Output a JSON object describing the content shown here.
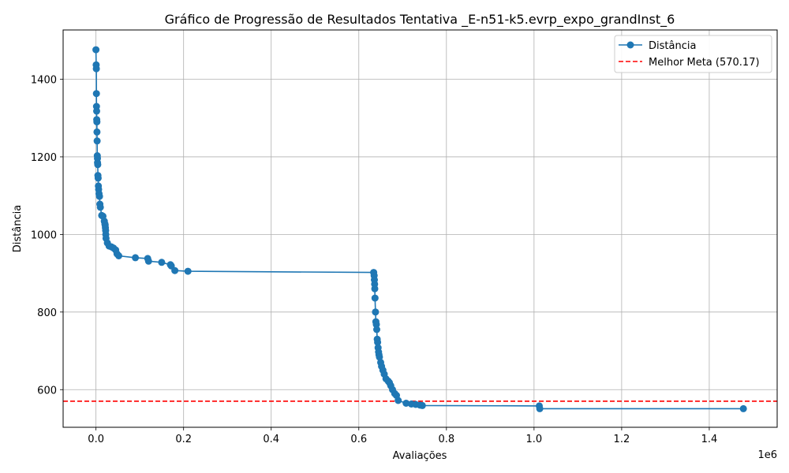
{
  "chart_data": {
    "type": "line",
    "title": "Gráfico de Progressão de Resultados Tentativa _E-n51-k5.evrp_expo_grandInst_6",
    "xlabel": "Avaliações",
    "ylabel": "Distância",
    "x_offset_label": "1e6",
    "x_scale_note": "x values in evaluations",
    "xlim": [
      -75000,
      1555000
    ],
    "ylim": [
      503,
      1527
    ],
    "xticks": [
      0,
      200000,
      400000,
      600000,
      800000,
      1000000,
      1200000,
      1400000
    ],
    "xtick_labels": [
      "0.0",
      "0.2",
      "0.4",
      "0.6",
      "0.8",
      "1.0",
      "1.2",
      "1.4"
    ],
    "yticks": [
      600,
      800,
      1000,
      1200,
      1400
    ],
    "ytick_labels": [
      "600",
      "800",
      "1000",
      "1200",
      "1400"
    ],
    "grid": true,
    "legend_position": "top-right",
    "series": [
      {
        "name": "Distância",
        "color": "#1f77b4",
        "marker": "circle",
        "x": [
          0,
          500,
          800,
          1000,
          1200,
          1500,
          1800,
          2000,
          2300,
          2600,
          3000,
          3300,
          3600,
          4000,
          4500,
          5000,
          5500,
          6000,
          7000,
          8000,
          9000,
          10000,
          13000,
          16000,
          19000,
          20500,
          21000,
          21500,
          22000,
          22500,
          23000,
          26000,
          30000,
          35000,
          40000,
          45000,
          48000,
          52000,
          90000,
          118000,
          120000,
          150000,
          170000,
          172000,
          180000,
          210000,
          634000,
          635000,
          635500,
          636000,
          636500,
          637000,
          638000,
          639000,
          640000,
          641000,
          642000,
          643000,
          644000,
          645000,
          646000,
          647000,
          650000,
          652000,
          655000,
          658000,
          662000,
          667000,
          670000,
          673000,
          677000,
          682000,
          686000,
          690000,
          708000,
          720000,
          730000,
          740000,
          745000,
          1012000,
          1013000,
          1478000
        ],
        "y": [
          1476,
          1437,
          1427,
          1363,
          1330,
          1318,
          1296,
          1290,
          1264,
          1241,
          1203,
          1196,
          1185,
          1180,
          1152,
          1145,
          1125,
          1116,
          1105,
          1098,
          1078,
          1070,
          1049,
          1047,
          1034,
          1027,
          1024,
          1017,
          1010,
          1000,
          990,
          978,
          970,
          968,
          965,
          960,
          950,
          945,
          940,
          938,
          931,
          928,
          922,
          919,
          907,
          905,
          902,
          894,
          883,
          872,
          860,
          836,
          800,
          775,
          768,
          755,
          730,
          722,
          708,
          697,
          690,
          684,
          670,
          660,
          650,
          640,
          628,
          622,
          618,
          610,
          600,
          590,
          585,
          572,
          565,
          563,
          562,
          560,
          559,
          558,
          551,
          551
        ]
      }
    ],
    "reference_line": {
      "name": "Melhor Meta (570.17)",
      "y": 570.17,
      "color": "#ff0000",
      "style": "dashed"
    }
  }
}
